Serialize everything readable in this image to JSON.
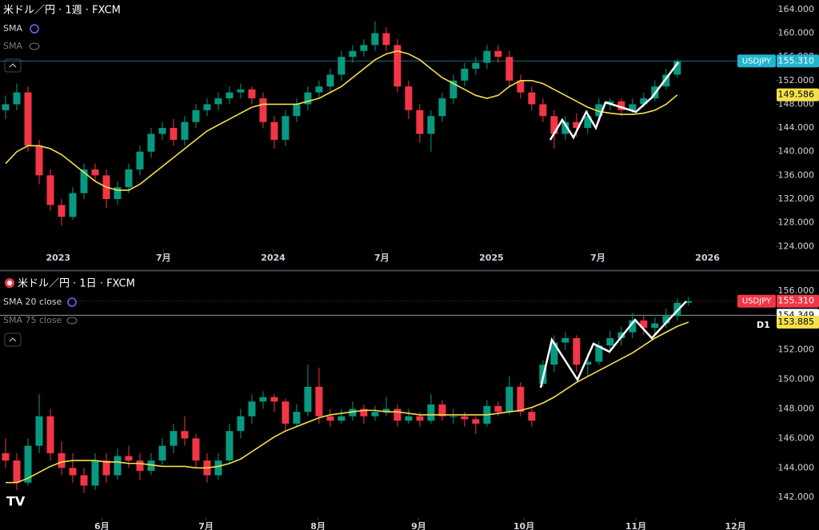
{
  "chart_data": [
    {
      "type": "candlestick",
      "title": "米ドル／円 · 1週 · FXCM",
      "indicators": [
        "SMA",
        "SMA"
      ],
      "up_color": "#089981",
      "down_color": "#f23645",
      "candles": [
        [
          147,
          149.5,
          145.5,
          148
        ],
        [
          148,
          151.5,
          147,
          150
        ],
        [
          150,
          151,
          140,
          141
        ],
        [
          141,
          142,
          134.5,
          136
        ],
        [
          136,
          137,
          130,
          131
        ],
        [
          131,
          132,
          127.5,
          129
        ],
        [
          129,
          134,
          128.5,
          133
        ],
        [
          133,
          138,
          132,
          137
        ],
        [
          137,
          138,
          135,
          136
        ],
        [
          136,
          137,
          130.5,
          132
        ],
        [
          132,
          135,
          131,
          134
        ],
        [
          134,
          138,
          133,
          137
        ],
        [
          137,
          141,
          136,
          140
        ],
        [
          140,
          144,
          139,
          143
        ],
        [
          143,
          145,
          142,
          144
        ],
        [
          144,
          145.5,
          141,
          142
        ],
        [
          142,
          146,
          141,
          145
        ],
        [
          145,
          148,
          144,
          147
        ],
        [
          147,
          149,
          146,
          148
        ],
        [
          148,
          150,
          147,
          149
        ],
        [
          149,
          151,
          148,
          150
        ],
        [
          150,
          151.5,
          149,
          150.5
        ],
        [
          150.5,
          151,
          148,
          149
        ],
        [
          149,
          150,
          144,
          145
        ],
        [
          145,
          146,
          140.5,
          142
        ],
        [
          142,
          147,
          141,
          146
        ],
        [
          146,
          149,
          145,
          148
        ],
        [
          148,
          151,
          147,
          150
        ],
        [
          150,
          152,
          149,
          151
        ],
        [
          151,
          154,
          150,
          153
        ],
        [
          153,
          157,
          152,
          156
        ],
        [
          156,
          158,
          155,
          157
        ],
        [
          157,
          159,
          156,
          158
        ],
        [
          158,
          162,
          157,
          160
        ],
        [
          160,
          161,
          157,
          158
        ],
        [
          158,
          159,
          150,
          151
        ],
        [
          151,
          152,
          145.5,
          147
        ],
        [
          147,
          148,
          141.5,
          143
        ],
        [
          143,
          147,
          140,
          146
        ],
        [
          146,
          150,
          145,
          149
        ],
        [
          149,
          153,
          148,
          152
        ],
        [
          152,
          155,
          151,
          154
        ],
        [
          154,
          156,
          153,
          155
        ],
        [
          155,
          158,
          154,
          157
        ],
        [
          157,
          158,
          155,
          156
        ],
        [
          156,
          157,
          151,
          152
        ],
        [
          152,
          153,
          149,
          150
        ],
        [
          150,
          151,
          147,
          148
        ],
        [
          148,
          149,
          145,
          146
        ],
        [
          146,
          147,
          140.5,
          143
        ],
        [
          143,
          146,
          142,
          145
        ],
        [
          145,
          146.5,
          142.5,
          144
        ],
        [
          144,
          147,
          143,
          146
        ],
        [
          146,
          149,
          145,
          148
        ],
        [
          148,
          149,
          147,
          148.5
        ],
        [
          148.5,
          149,
          146,
          147
        ],
        [
          147,
          149,
          146.5,
          148
        ],
        [
          148,
          150,
          147.5,
          149
        ],
        [
          149,
          152,
          148.5,
          151
        ],
        [
          151,
          154,
          150.5,
          153
        ],
        [
          153,
          155.6,
          152.5,
          155.31
        ]
      ],
      "sma": {
        "color": "#f5e04b",
        "values": [
          138,
          140,
          141,
          141,
          140.5,
          139.5,
          138,
          136.5,
          135,
          134,
          133.5,
          133.5,
          134.5,
          136,
          137.5,
          139,
          140.5,
          142,
          143.5,
          144.5,
          145.5,
          146.5,
          147.5,
          148,
          148,
          148,
          148,
          148.5,
          149,
          150,
          151,
          152.5,
          154,
          155.5,
          156.5,
          157,
          156.5,
          155.5,
          154,
          152.5,
          151.5,
          150.5,
          149.5,
          149,
          149.5,
          151,
          152,
          152,
          151.5,
          150.5,
          149.5,
          148.5,
          147.5,
          146.8,
          146.5,
          146.3,
          146.3,
          146.5,
          147,
          148,
          149.586
        ]
      },
      "ylim": [
        123.5,
        165.6
      ],
      "yticks": [
        {
          "value": 124,
          "label": "124.000"
        },
        {
          "value": 128,
          "label": "128.000"
        },
        {
          "value": 132,
          "label": "132.000"
        },
        {
          "value": 136,
          "label": "136.000"
        },
        {
          "value": 140,
          "label": "140.000"
        },
        {
          "value": 144,
          "label": "144.000"
        },
        {
          "value": 148,
          "label": "148.000"
        },
        {
          "value": 152,
          "label": "152.000"
        },
        {
          "value": 156,
          "label": "156.000"
        },
        {
          "value": 160,
          "label": "160.000"
        },
        {
          "value": 164,
          "label": "164.000"
        }
      ],
      "xlim": [
        -0.5,
        68.8
      ],
      "xticks": [
        {
          "value": 4.7,
          "label": "2023"
        },
        {
          "value": 14.1,
          "label": "7月"
        },
        {
          "value": 23.9,
          "label": "2024"
        },
        {
          "value": 33.6,
          "label": "7月"
        },
        {
          "value": 43.4,
          "label": "2025"
        },
        {
          "value": 52.9,
          "label": "7月"
        },
        {
          "value": 62.7,
          "label": "2026"
        }
      ],
      "price_labels": [
        {
          "name": "USDJPY",
          "value": 155.31,
          "label": "155.310",
          "color": "#22b5d0",
          "line_style": "solid"
        },
        {
          "value": 149.586,
          "label": "149.586",
          "color": "#f5e04b"
        }
      ]
    },
    {
      "type": "candlestick",
      "title": "米ドル／円 · 1日 · FXCM",
      "indicators": [
        "SMA 20 close",
        "SMA 75 close"
      ],
      "timeframe": "D1",
      "up_color": "#089981",
      "down_color": "#f23645",
      "candles": [
        [
          145,
          146,
          144,
          144.5
        ],
        [
          144.5,
          145,
          142.5,
          143
        ],
        [
          143,
          146,
          142.8,
          145.5
        ],
        [
          145.5,
          149,
          145,
          147.5
        ],
        [
          147.5,
          148,
          144.5,
          145
        ],
        [
          145,
          145.8,
          143.5,
          144
        ],
        [
          144,
          145,
          143,
          143.5
        ],
        [
          143.5,
          144,
          142.3,
          142.8
        ],
        [
          142.8,
          145,
          142.5,
          144.5
        ],
        [
          144.5,
          145,
          143,
          143.5
        ],
        [
          143.5,
          145.3,
          143.2,
          144.8
        ],
        [
          144.8,
          145.5,
          144,
          144.5
        ],
        [
          144.5,
          145,
          143.2,
          143.8
        ],
        [
          143.8,
          145,
          143.5,
          144.5
        ],
        [
          144.5,
          146,
          144.2,
          145.5
        ],
        [
          145.5,
          147,
          145,
          146.5
        ],
        [
          146.5,
          147.5,
          145.5,
          146
        ],
        [
          146,
          146.3,
          144,
          144.5
        ],
        [
          144.5,
          145,
          143,
          143.5
        ],
        [
          143.5,
          145,
          143.2,
          144.5
        ],
        [
          144.5,
          147,
          144.3,
          146.5
        ],
        [
          146.5,
          148,
          146,
          147.5
        ],
        [
          147.5,
          149,
          147,
          148.5
        ],
        [
          148.5,
          149.2,
          148,
          148.8
        ],
        [
          148.8,
          149,
          147.8,
          148.5
        ],
        [
          148.5,
          148.7,
          146.5,
          147
        ],
        [
          147,
          148.3,
          146.8,
          147.8
        ],
        [
          147.8,
          151,
          147.5,
          149.5
        ],
        [
          149.5,
          150.8,
          147,
          147.5
        ],
        [
          147.5,
          148,
          146.8,
          147.2
        ],
        [
          147.2,
          148,
          147,
          147.5
        ],
        [
          147.5,
          148.5,
          147.2,
          148
        ],
        [
          148,
          148.3,
          147,
          147.5
        ],
        [
          147.5,
          148.2,
          147.2,
          147.8
        ],
        [
          147.8,
          148.8,
          147.5,
          148
        ],
        [
          148,
          148.3,
          146.8,
          147.2
        ],
        [
          147.2,
          148,
          147,
          147.5
        ],
        [
          147.5,
          147.8,
          146.8,
          147.2
        ],
        [
          147.2,
          149,
          147,
          148.3
        ],
        [
          148.3,
          148.6,
          147.2,
          147.5
        ],
        [
          147.5,
          148,
          147,
          147.5
        ],
        [
          147.5,
          147.8,
          146.8,
          147.3
        ],
        [
          147.3,
          147.5,
          146.3,
          147
        ],
        [
          147,
          148.6,
          146.8,
          148.2
        ],
        [
          148.2,
          148.5,
          147.5,
          147.8
        ],
        [
          147.8,
          150.2,
          147.6,
          149.5
        ],
        [
          149.5,
          149.8,
          147.5,
          147.8
        ],
        [
          147.8,
          148,
          146.8,
          147.2
        ],
        [
          149.7,
          151.3,
          149.5,
          151
        ],
        [
          151,
          153,
          150.5,
          152.5
        ],
        [
          152.5,
          153.2,
          152,
          152.8
        ],
        [
          152.8,
          153,
          150.5,
          151
        ],
        [
          151,
          151.8,
          150.2,
          151.2
        ],
        [
          151.2,
          152.6,
          151,
          152.3
        ],
        [
          152.3,
          153.3,
          152,
          152.8
        ],
        [
          152.8,
          153.6,
          152.3,
          153.2
        ],
        [
          153.2,
          154.5,
          152.8,
          154
        ],
        [
          154,
          154.3,
          153,
          153.5
        ],
        [
          153.5,
          154.2,
          153,
          153.8
        ],
        [
          153.8,
          154.8,
          153.5,
          154.3
        ],
        [
          154.3,
          155.5,
          154,
          155.2
        ],
        [
          155.2,
          155.6,
          155,
          155.31
        ]
      ],
      "sma": {
        "color": "#f5e04b",
        "values": [
          143,
          143,
          143.3,
          143.7,
          144.1,
          144.4,
          144.5,
          144.5,
          144.5,
          144.4,
          144.4,
          144.3,
          144.3,
          144.2,
          144.1,
          144.1,
          144.1,
          144,
          144,
          144.1,
          144.3,
          144.6,
          145.1,
          145.6,
          146.1,
          146.5,
          146.8,
          147.1,
          147.4,
          147.6,
          147.7,
          147.8,
          147.9,
          147.9,
          147.8,
          147.8,
          147.7,
          147.6,
          147.6,
          147.6,
          147.6,
          147.6,
          147.6,
          147.6,
          147.7,
          147.8,
          147.9,
          148.1,
          148.4,
          148.8,
          149.3,
          149.8,
          150.2,
          150.6,
          151,
          151.4,
          151.8,
          152.3,
          152.8,
          153.2,
          153.6,
          153.885
        ]
      },
      "ylim": [
        140.6,
        157.3
      ],
      "yticks": [
        {
          "value": 142,
          "label": "142.000"
        },
        {
          "value": 144,
          "label": "144.000"
        },
        {
          "value": 146,
          "label": "146.000"
        },
        {
          "value": 148,
          "label": "148.000"
        },
        {
          "value": 150,
          "label": "150.000"
        },
        {
          "value": 152,
          "label": "152.000"
        },
        {
          "value": 154,
          "label": "154.000"
        },
        {
          "value": 156,
          "label": "156.000"
        }
      ],
      "xlim": [
        -0.5,
        68.8
      ],
      "xticks": [
        {
          "value": 8.6,
          "label": "6月"
        },
        {
          "value": 17.9,
          "label": "7月"
        },
        {
          "value": 27.9,
          "label": "8月"
        },
        {
          "value": 36.9,
          "label": "9月"
        },
        {
          "value": 46.3,
          "label": "10月"
        },
        {
          "value": 56.3,
          "label": "11月"
        },
        {
          "value": 65.2,
          "label": "12月"
        }
      ],
      "price_labels": [
        {
          "name": "USDJPY",
          "value": 155.31,
          "label": "155.310",
          "color": "#f23645",
          "line_style": "dotted"
        },
        {
          "value": 154.349,
          "label": "154.349",
          "color": "#ffffff",
          "line_style": "solid"
        },
        {
          "value": 153.885,
          "label": "153.885",
          "color": "#f5e04b"
        }
      ]
    }
  ]
}
